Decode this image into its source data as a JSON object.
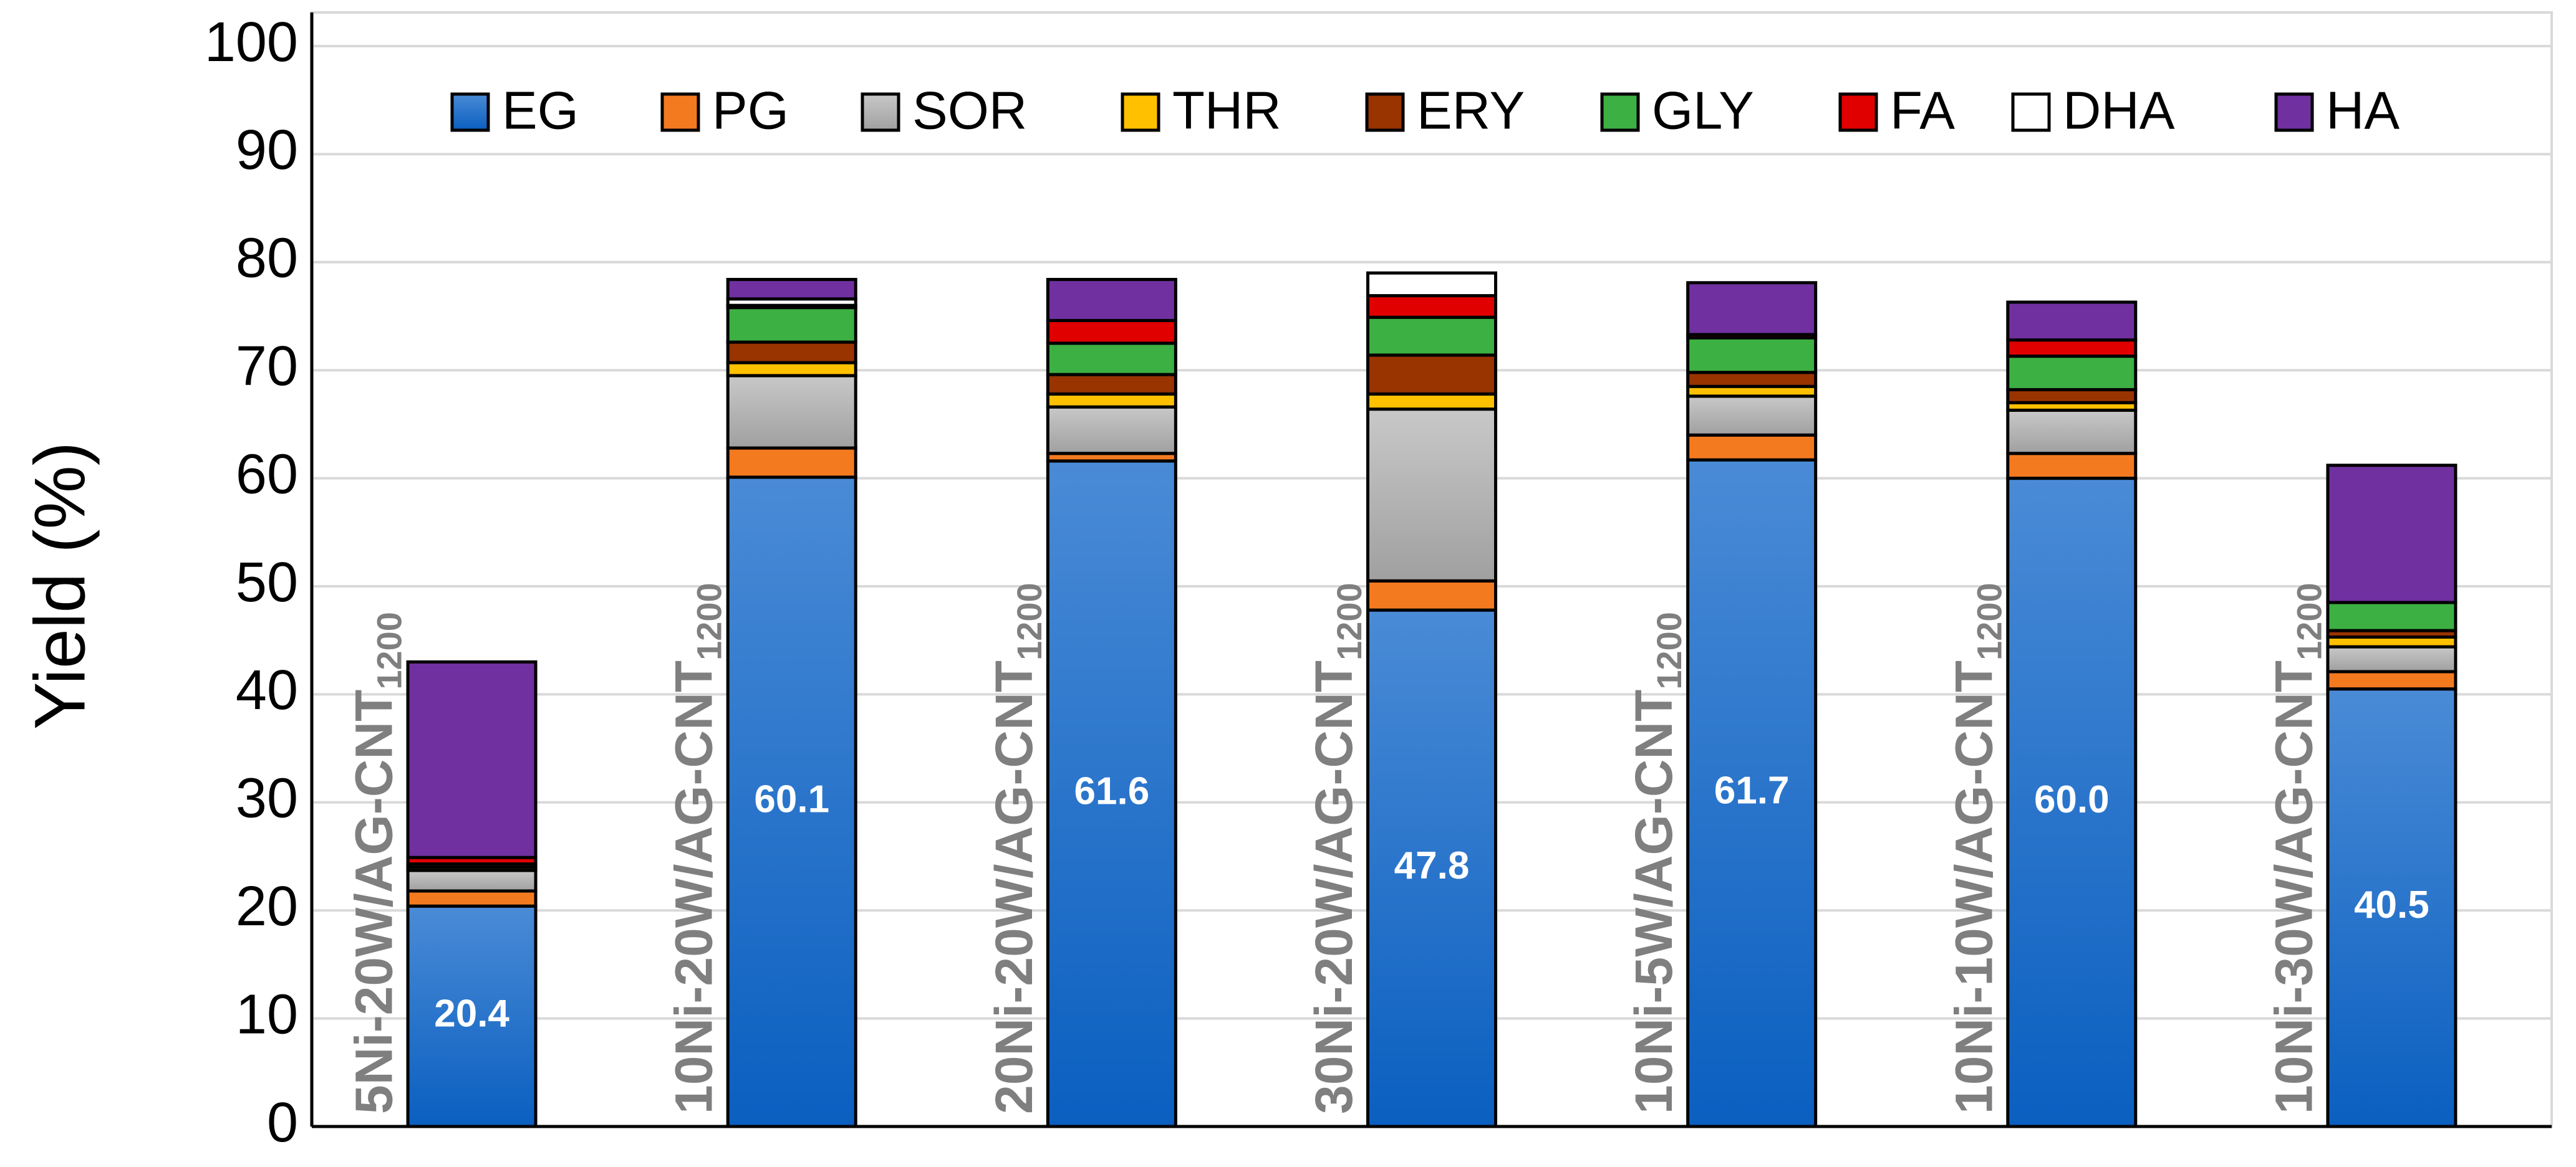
{
  "chart_data": {
    "type": "stacked_bar",
    "y_label": "Yield (%)",
    "categories": [
      "5Ni-20W/AG-CNT",
      "10Ni-20W/AG-CNT",
      "20Ni-20W/AG-CNT",
      "30Ni-20W/AG-CNT",
      "10Ni-5W/AG-CNT",
      "10Ni-10W/AG-CNT",
      "10Ni-30W/AG-CNT"
    ],
    "category_subscripts": [
      "1200",
      "1200",
      "1200",
      "1200",
      "1200",
      "1200",
      "1200"
    ],
    "ylim": [
      0,
      100
    ],
    "yticks": [
      0,
      10,
      20,
      30,
      40,
      50,
      60,
      70,
      80,
      90,
      100
    ],
    "grid": true,
    "legend": "top",
    "series": [
      {
        "name": "EG",
        "color": "#1f6fc5",
        "values": [
          20.4,
          60.1,
          61.6,
          47.8,
          61.7,
          60.0,
          40.5
        ],
        "value_labels": [
          "20.4",
          "60.1",
          "61.6",
          "47.8",
          "61.7",
          "60.0",
          "40.5"
        ]
      },
      {
        "name": "PG",
        "color": "#f47a20",
        "values": [
          1.4,
          2.7,
          0.7,
          2.7,
          2.3,
          2.3,
          1.6
        ]
      },
      {
        "name": "SOR",
        "color": "#a6a6a6",
        "values": [
          1.9,
          6.7,
          4.3,
          15.9,
          3.6,
          4.0,
          2.3
        ]
      },
      {
        "name": "THR",
        "color": "#ffc000",
        "values": [
          0.3,
          1.2,
          1.2,
          1.4,
          0.9,
          0.7,
          0.9
        ]
      },
      {
        "name": "ERY",
        "color": "#993300",
        "values": [
          0.3,
          1.9,
          1.8,
          3.6,
          1.3,
          1.2,
          0.6
        ]
      },
      {
        "name": "GLY",
        "color": "#3cb043",
        "values": [
          0,
          3.2,
          2.9,
          3.5,
          3.2,
          3.1,
          2.6
        ]
      },
      {
        "name": "FA",
        "color": "#e00000",
        "values": [
          0.6,
          0.2,
          2.1,
          2.0,
          0.3,
          1.5,
          0
        ]
      },
      {
        "name": "DHA",
        "color": "#ffffff",
        "values": [
          0,
          0.6,
          0,
          2.1,
          0,
          0,
          0
        ]
      },
      {
        "name": "HA",
        "color": "#7030a0",
        "values": [
          18.1,
          1.8,
          3.8,
          0,
          4.8,
          3.5,
          12.7
        ]
      }
    ]
  }
}
